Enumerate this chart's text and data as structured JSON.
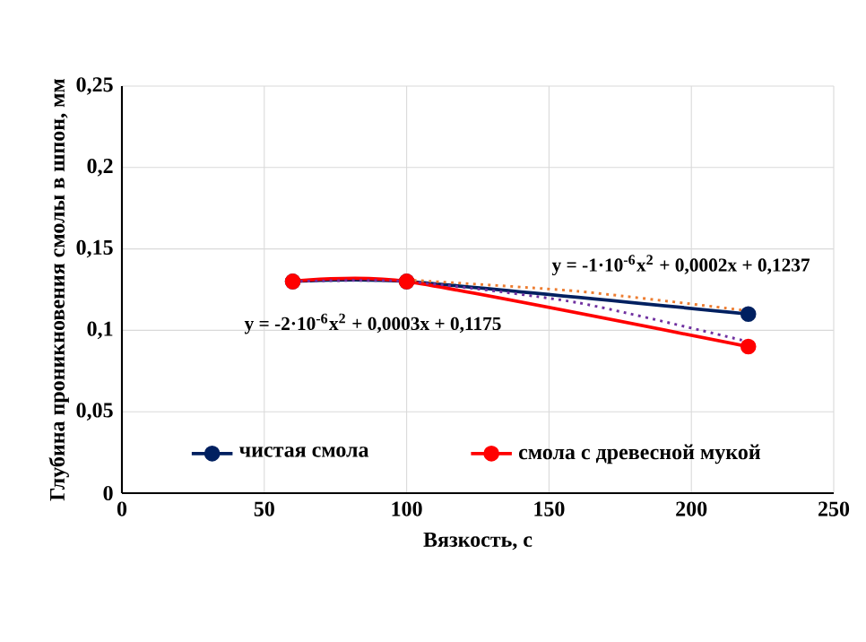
{
  "chart_data": {
    "type": "line",
    "xlabel": "Вязкость, с",
    "ylabel": "Глубина проникновения смолы в шпон, мм",
    "xlim": [
      0,
      250
    ],
    "xticks": [
      0,
      50,
      100,
      150,
      200,
      250
    ],
    "ylim": [
      0,
      0.25
    ],
    "yticks": [
      0,
      {
        "value": 0.05,
        "label": "0,05"
      },
      {
        "value": 0.1,
        "label": "0,1"
      },
      {
        "value": 0.15,
        "label": "0,15"
      },
      {
        "value": 0.2,
        "label": "0,2"
      },
      {
        "value": 0.25,
        "label": "0,25"
      }
    ],
    "grid": true,
    "legend": "bottom",
    "marker": "circle",
    "series": [
      {
        "name": "чистая смола",
        "color": "#002060",
        "x": [
          60,
          100,
          220
        ],
        "values": [
          0.13,
          0.13,
          0.11
        ]
      },
      {
        "name": "смола с древесной мукой",
        "color": "#ff0000",
        "x": [
          60,
          100,
          220
        ],
        "values": [
          0.13,
          0.13,
          0.09
        ]
      },
      {
        "type": "line",
        "color": "#ed7d31",
        "marker": "none",
        "line_style": "dotted",
        "x": [
          100,
          160,
          220
        ],
        "values": [
          0.131,
          0.124,
          0.112
        ]
      },
      {
        "type": "line",
        "color": "#7030a0",
        "marker": "none",
        "line_style": "dotted",
        "x": [
          60,
          100,
          160,
          220
        ],
        "values": [
          0.13,
          0.13,
          0.117,
          0.093
        ]
      }
    ],
    "annotations": [
      "y = -1·10$^{-6}$x$^{2}$ + 0,0002x + 0,1237",
      "y = -2·10$^{-6}$x$^{2}$ + 0,0003x + 0,1175"
    ]
  }
}
